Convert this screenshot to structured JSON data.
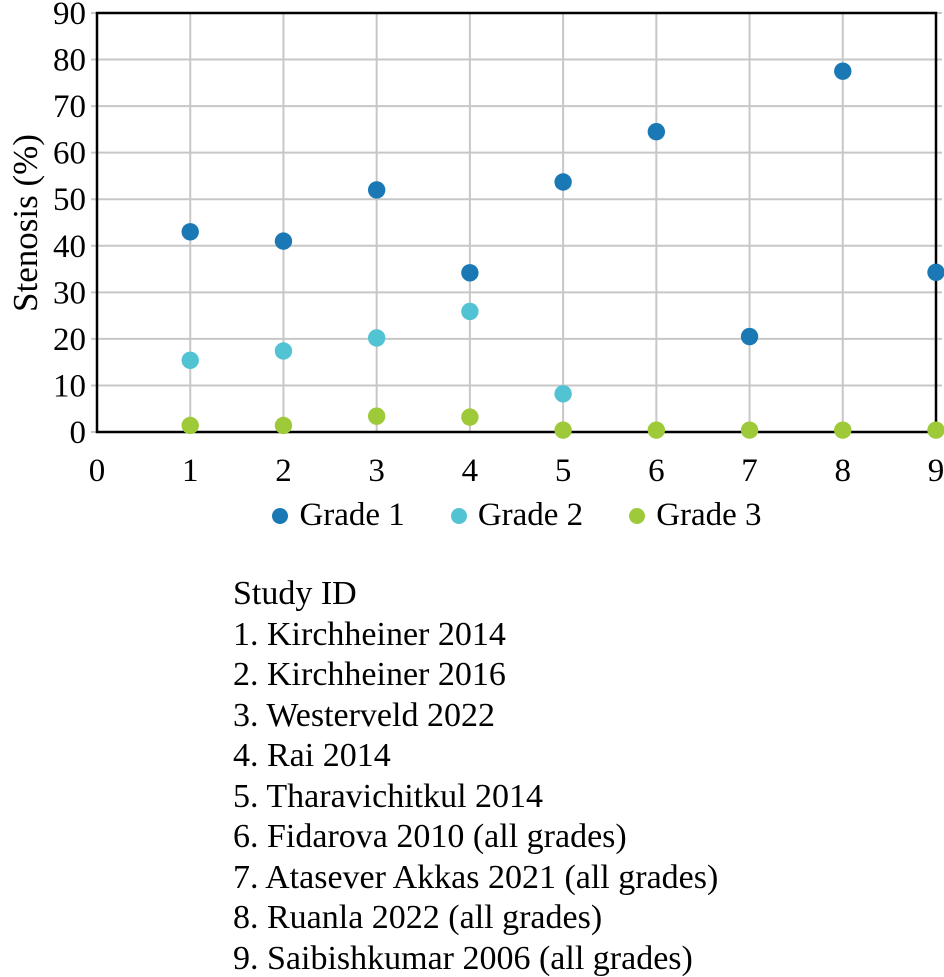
{
  "chart_data": {
    "type": "scatter",
    "title": "",
    "xlabel": "",
    "ylabel": "Stenosis (%)",
    "xlim": [
      0,
      9
    ],
    "ylim": [
      0,
      90
    ],
    "xticks": [
      0,
      1,
      2,
      3,
      4,
      5,
      6,
      7,
      8,
      9
    ],
    "yticks": [
      0,
      10,
      20,
      30,
      40,
      50,
      60,
      70,
      80,
      90
    ],
    "grid": true,
    "gridline_color": "#c7c7c7",
    "axis_color": "#000000",
    "marker": "circle",
    "legend_position": "bottom-center",
    "x": [
      1,
      2,
      3,
      4,
      5,
      6,
      7,
      8,
      9
    ],
    "series": [
      {
        "name": "Grade 1",
        "color": "#1a78b4",
        "values": [
          43,
          41,
          52,
          34.2,
          53.7,
          64.5,
          20.5,
          77.5,
          34.3
        ]
      },
      {
        "name": "Grade 2",
        "color": "#52c3d2",
        "values": [
          15.4,
          17.4,
          20.2,
          25.9,
          8.2,
          null,
          null,
          null,
          null
        ]
      },
      {
        "name": "Grade 3",
        "color": "#9eca39",
        "values": [
          1.4,
          1.4,
          3.4,
          3.2,
          0.4,
          0.4,
          0.4,
          0.4,
          0.4
        ]
      }
    ]
  },
  "study_list": {
    "title": "Study ID",
    "items": [
      "1. Kirchheiner 2014",
      "2. Kirchheiner 2016",
      "3. Westerveld 2022",
      "4. Rai 2014",
      "5. Tharavichitkul 2014",
      "6. Fidarova 2010 (all grades)",
      "7. Atasever Akkas 2021 (all grades)",
      "8. Ruanla 2022 (all grades)",
      "9. Saibishkumar 2006 (all grades)"
    ]
  }
}
